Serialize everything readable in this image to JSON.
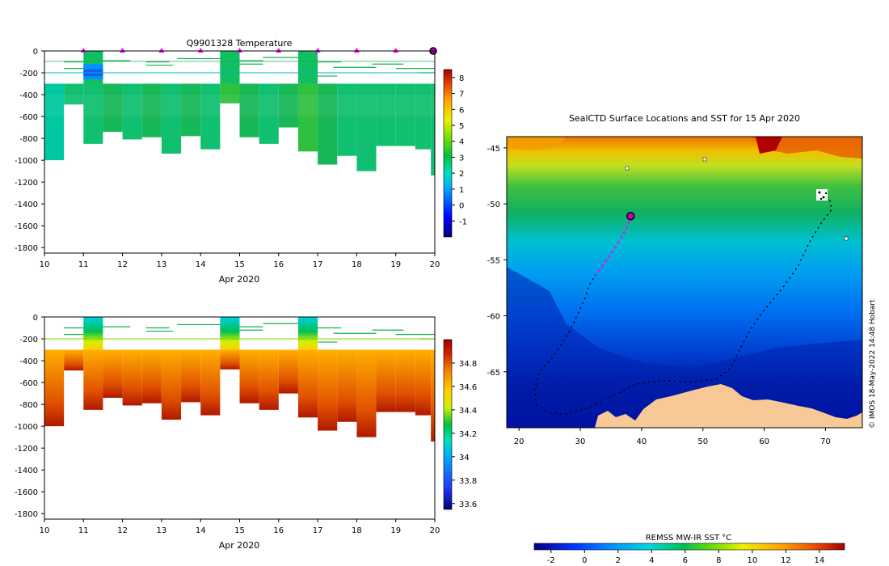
{
  "chart_data": [
    {
      "type": "heatmap",
      "title": "Q9901328  Temperature",
      "xlabel": "Apr 2020",
      "ylabel": "",
      "x_ticks": [
        "10",
        "11",
        "12",
        "13",
        "14",
        "15",
        "16",
        "17",
        "18",
        "19",
        "20"
      ],
      "x_range": [
        10,
        20
      ],
      "y_ticks": [
        "0",
        "-200",
        "-400",
        "-600",
        "-800",
        "-1000",
        "-1200",
        "-1400",
        "-1600",
        "-1800"
      ],
      "y_range": [
        -1850,
        0
      ],
      "colorbar": {
        "min": -2,
        "max": 8.5,
        "ticks": [
          "8",
          "7",
          "6",
          "5",
          "4",
          "3",
          "2",
          "1",
          "0",
          "-1"
        ]
      },
      "surface_markers_days": [
        11,
        12,
        13,
        14,
        15,
        16,
        17,
        18,
        19
      ],
      "latest_profile_day": 20,
      "reference_depth": -200,
      "profiles": [
        {
          "day": 10.0,
          "max_depth": 1000,
          "value": 2.4
        },
        {
          "day": 10.5,
          "max_depth": 490,
          "value": 2.6
        },
        {
          "day": 11.0,
          "max_depth": 850,
          "value": 2.5
        },
        {
          "day": 11.5,
          "max_depth": 740,
          "value": 2.7
        },
        {
          "day": 12.0,
          "max_depth": 810,
          "value": 2.6
        },
        {
          "day": 12.5,
          "max_depth": 790,
          "value": 2.7
        },
        {
          "day": 13.0,
          "max_depth": 940,
          "value": 2.5
        },
        {
          "day": 13.5,
          "max_depth": 780,
          "value": 2.8
        },
        {
          "day": 14.0,
          "max_depth": 900,
          "value": 2.6
        },
        {
          "day": 14.5,
          "max_depth": 480,
          "value": 3.0
        },
        {
          "day": 15.0,
          "max_depth": 790,
          "value": 2.7
        },
        {
          "day": 15.5,
          "max_depth": 850,
          "value": 2.6
        },
        {
          "day": 16.0,
          "max_depth": 700,
          "value": 2.8
        },
        {
          "day": 16.5,
          "max_depth": 920,
          "value": 2.9
        },
        {
          "day": 17.0,
          "max_depth": 1040,
          "value": 2.7
        },
        {
          "day": 17.5,
          "max_depth": 960,
          "value": 2.6
        },
        {
          "day": 18.0,
          "max_depth": 1100,
          "value": 2.5
        },
        {
          "day": 18.5,
          "max_depth": 870,
          "value": 2.6
        },
        {
          "day": 19.0,
          "max_depth": 870,
          "value": 2.6
        },
        {
          "day": 19.5,
          "max_depth": 900,
          "value": 2.6
        },
        {
          "day": 19.9,
          "max_depth": 1140,
          "value": 2.6
        }
      ]
    },
    {
      "type": "heatmap",
      "title": "",
      "xlabel": "Apr 2020",
      "ylabel": "",
      "x_ticks": [
        "10",
        "11",
        "12",
        "13",
        "14",
        "15",
        "16",
        "17",
        "18",
        "19",
        "20"
      ],
      "x_range": [
        10,
        20
      ],
      "y_ticks": [
        "0",
        "-200",
        "-400",
        "-600",
        "-800",
        "-1000",
        "-1200",
        "-1400",
        "-1600",
        "-1800"
      ],
      "y_range": [
        -1850,
        0
      ],
      "colorbar": {
        "min": 33.55,
        "max": 35.0,
        "ticks": [
          "34.8",
          "34.6",
          "34.4",
          "34.2",
          "34",
          "33.8",
          "33.6"
        ]
      },
      "reference_depth": -200,
      "profiles_note": "salinity increases with depth from ~34.6 at 300 m to ~34.9 at 1000 m"
    },
    {
      "type": "heatmap",
      "title": "SealCTD Surface Locations and SST for 15 Apr 2020",
      "xlabel": "",
      "ylabel": "",
      "x_ticks": [
        "20",
        "30",
        "40",
        "50",
        "60",
        "70"
      ],
      "x_range": [
        18,
        76
      ],
      "y_ticks": [
        "-45",
        "-50",
        "-55",
        "-60",
        "-65"
      ],
      "y_range": [
        -70,
        -44
      ],
      "colorbar": {
        "label": "REMSS MW-IR SST °C",
        "min": -3,
        "max": 15.5,
        "ticks": [
          "-2",
          "0",
          "2",
          "4",
          "6",
          "8",
          "10",
          "12",
          "14"
        ]
      },
      "track_current": [
        [
          38.2,
          -51.1
        ],
        [
          37.5,
          -52.2
        ],
        [
          36.5,
          -53.2
        ],
        [
          35.2,
          -54.3
        ],
        [
          33.8,
          -55.4
        ],
        [
          32.6,
          -56.3
        ]
      ],
      "track_older": [
        [
          32.6,
          -56.3
        ],
        [
          31.5,
          -57.2
        ],
        [
          30.8,
          -58.4
        ],
        [
          29.8,
          -59.6
        ],
        [
          28.6,
          -61
        ],
        [
          27,
          -62.5
        ],
        [
          25.3,
          -63.8
        ],
        [
          23.4,
          -65
        ],
        [
          22.6,
          -66.5
        ],
        [
          22.8,
          -67.9
        ],
        [
          24.6,
          -68.6
        ],
        [
          27.5,
          -68.8
        ],
        [
          31.5,
          -68.2
        ],
        [
          35.5,
          -67.1
        ],
        [
          39,
          -66.1
        ],
        [
          43,
          -65.8
        ],
        [
          48,
          -65.9
        ],
        [
          52,
          -65.7
        ],
        [
          54.5,
          -64.7
        ],
        [
          56,
          -63
        ],
        [
          58,
          -61
        ],
        [
          60,
          -59.5
        ],
        [
          63,
          -57.5
        ],
        [
          65.5,
          -55.6
        ],
        [
          67.3,
          -53.5
        ],
        [
          69.2,
          -51.8
        ],
        [
          71,
          -50.5
        ],
        [
          70.6,
          -49.4
        ]
      ],
      "latest_position": [
        38.2,
        -51.1
      ],
      "credit": "© IMOS 18-May-2022 14:48 Hobart"
    }
  ]
}
